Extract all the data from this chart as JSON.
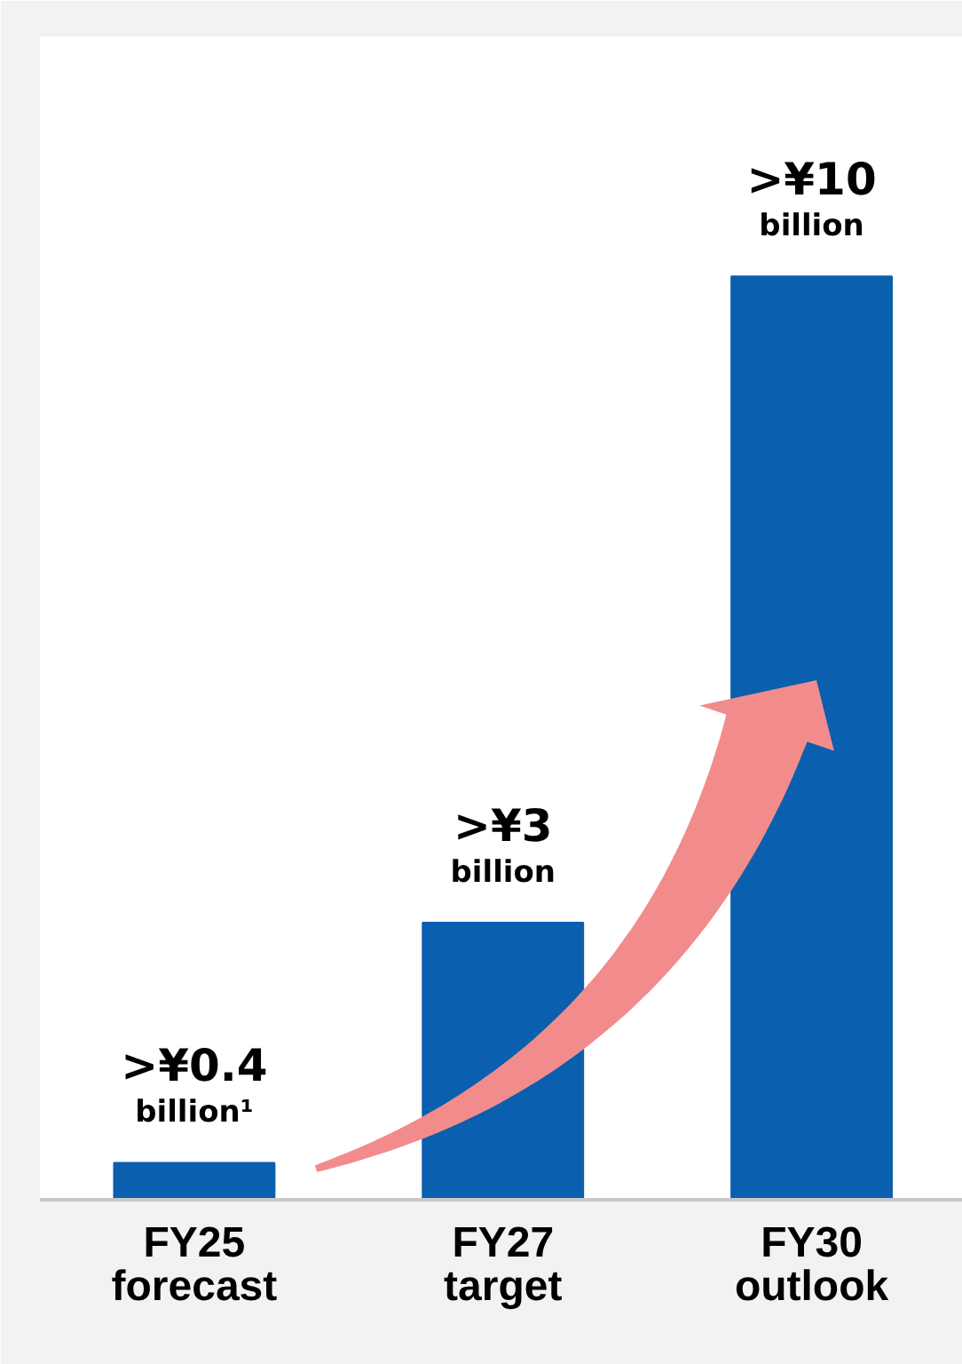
{
  "chart_data": {
    "type": "bar",
    "categories": [
      "FY25\nforecast",
      "FY27\ntarget",
      "FY30\noutlook"
    ],
    "values": [
      0.4,
      3,
      10
    ],
    "value_labels": [
      ">¥0.4\nbillion¹",
      ">¥3\nbillion",
      ">¥10\nbillion"
    ],
    "color": "#0a5fae",
    "grid": false
  }
}
